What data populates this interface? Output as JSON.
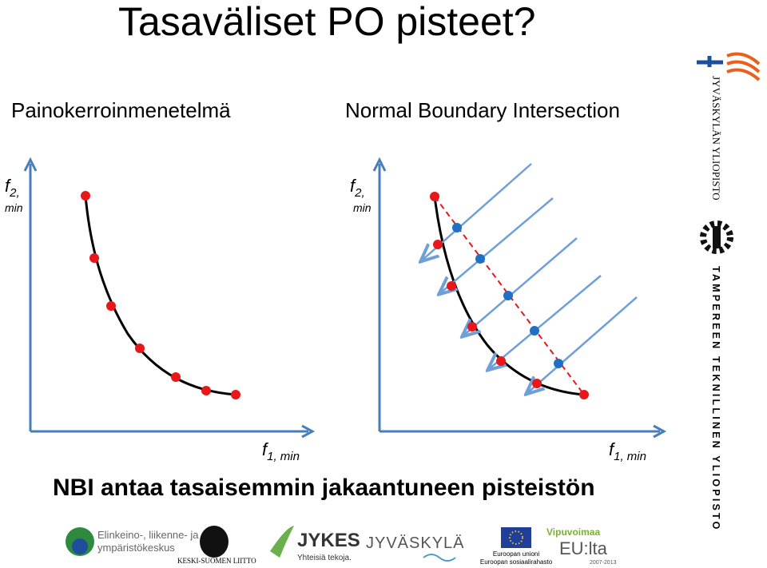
{
  "header": {
    "title": "Tasaväliset PO pisteet?"
  },
  "left_panel": {
    "heading": "Painokerroinmenetelmä",
    "y_label": {
      "symbol": "f",
      "subscript": "2,",
      "qualifier": "min"
    },
    "x_label": {
      "symbol": "f",
      "subscript": "1, min"
    }
  },
  "right_panel": {
    "heading": "Normal Boundary Intersection",
    "y_label": {
      "symbol": "f",
      "subscript": "2,",
      "qualifier": "min"
    },
    "x_label": {
      "symbol": "f",
      "subscript": "1, min"
    }
  },
  "conclusion": "NBI antaa tasaisemmin jakaantuneen pisteistön",
  "side_logos": [
    "JYVÄSKYLÄN YLIOPISTO",
    "TAMPEREEN TEKNILLINEN YLIOPISTO"
  ],
  "footer_logos": {
    "ely": [
      "Elinkeino-, liikenne- ja",
      "ympäristökeskus"
    ],
    "keski_suomi": "KESKI-SUOMEN LIITTO",
    "jykes": [
      "JYKES",
      "Yhteisiä tekoja."
    ],
    "jyvaskyla": "JYVÄSKYLÄ",
    "eu": [
      "Euroopan unioni",
      "Euroopan sosiaalirahasto"
    ],
    "vipuvoimaa": [
      "Vipuvoimaa",
      "EU:lta",
      "2007-2013"
    ]
  }
}
